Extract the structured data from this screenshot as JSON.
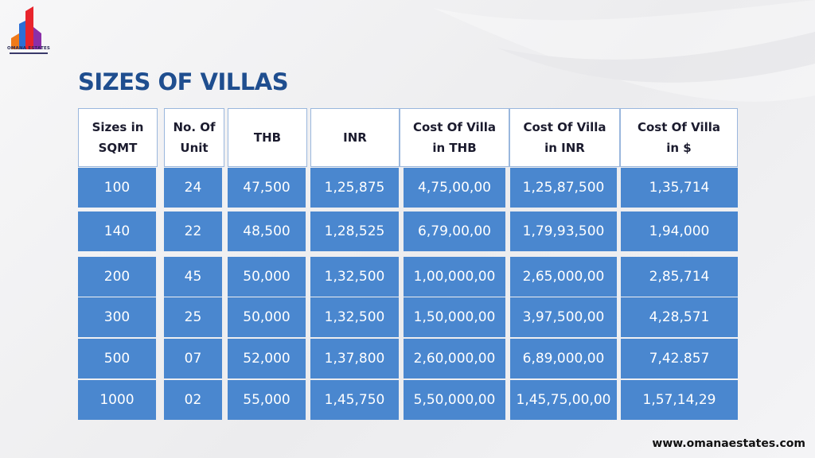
{
  "brand": {
    "name": "OMANA ESTATES"
  },
  "title": "SIZES OF VILLAS",
  "table": {
    "headers": [
      "Sizes in\nSQMT",
      "No. Of\nUnit",
      "THB",
      "INR",
      "Cost Of Villa\nin THB",
      "Cost Of Villa\nin INR",
      "Cost Of Villa\nin $"
    ],
    "rows": [
      [
        "100",
        "24",
        "47,500",
        "1,25,875",
        "4,75,00,00",
        "1,25,87,500",
        "1,35,714"
      ],
      [
        "140",
        "22",
        "48,500",
        "1,28,525",
        "6,79,00,00",
        "1,79,93,500",
        "1,94,000"
      ],
      [
        "200",
        "45",
        "50,000",
        "1,32,500",
        "1,00,000,00",
        "2,65,000,00",
        "2,85,714"
      ],
      [
        "300",
        "25",
        "50,000",
        "1,32,500",
        "1,50,000,00",
        "3,97,500,00",
        "4,28,571"
      ],
      [
        "500",
        "07",
        "52,000",
        "1,37,800",
        "2,60,000,00",
        "6,89,000,00",
        "7,42.857"
      ],
      [
        "1000",
        "02",
        "55,000",
        "1,45,750",
        "5,50,000,00",
        "1,45,75,00,00",
        "1,57,14,29"
      ]
    ]
  },
  "footer": {
    "website": "www.omanaestates.com"
  },
  "colors": {
    "cell_bg": "#4a87cf",
    "title": "#1f4e8f",
    "header_border": "#9ab7dd"
  }
}
